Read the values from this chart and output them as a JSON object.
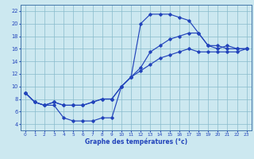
{
  "xlabel": "Graphe des températures (°c)",
  "bg_color": "#cce8f0",
  "line_color": "#2244bb",
  "grid_color": "#88bbcc",
  "xlim": [
    -0.5,
    23.5
  ],
  "ylim": [
    3,
    23
  ],
  "xticks": [
    0,
    1,
    2,
    3,
    4,
    5,
    6,
    7,
    8,
    9,
    10,
    11,
    12,
    13,
    14,
    15,
    16,
    17,
    18,
    19,
    20,
    21,
    22,
    23
  ],
  "yticks": [
    4,
    6,
    8,
    10,
    12,
    14,
    16,
    18,
    20,
    22
  ],
  "curves": [
    [
      9,
      7.5,
      7.0,
      7.0,
      5.0,
      4.5,
      4.5,
      4.5,
      5.0,
      5.0,
      10.0,
      11.5,
      20.0,
      21.5,
      21.5,
      21.5,
      21.0,
      20.5,
      18.5,
      16.5,
      16.0,
      16.5,
      16.0,
      16.0
    ],
    [
      9,
      7.5,
      7.0,
      7.5,
      7.0,
      7.0,
      7.0,
      7.5,
      8.0,
      8.0,
      10.0,
      11.5,
      13.0,
      15.5,
      16.5,
      17.5,
      18.0,
      18.5,
      18.5,
      16.5,
      16.5,
      16.0,
      16.0,
      16.0
    ],
    [
      9,
      7.5,
      7.0,
      7.5,
      7.0,
      7.0,
      7.0,
      7.5,
      8.0,
      8.0,
      10.0,
      11.5,
      12.5,
      13.5,
      14.5,
      15.0,
      15.5,
      16.0,
      15.5,
      15.5,
      15.5,
      15.5,
      15.5,
      16.0
    ]
  ]
}
